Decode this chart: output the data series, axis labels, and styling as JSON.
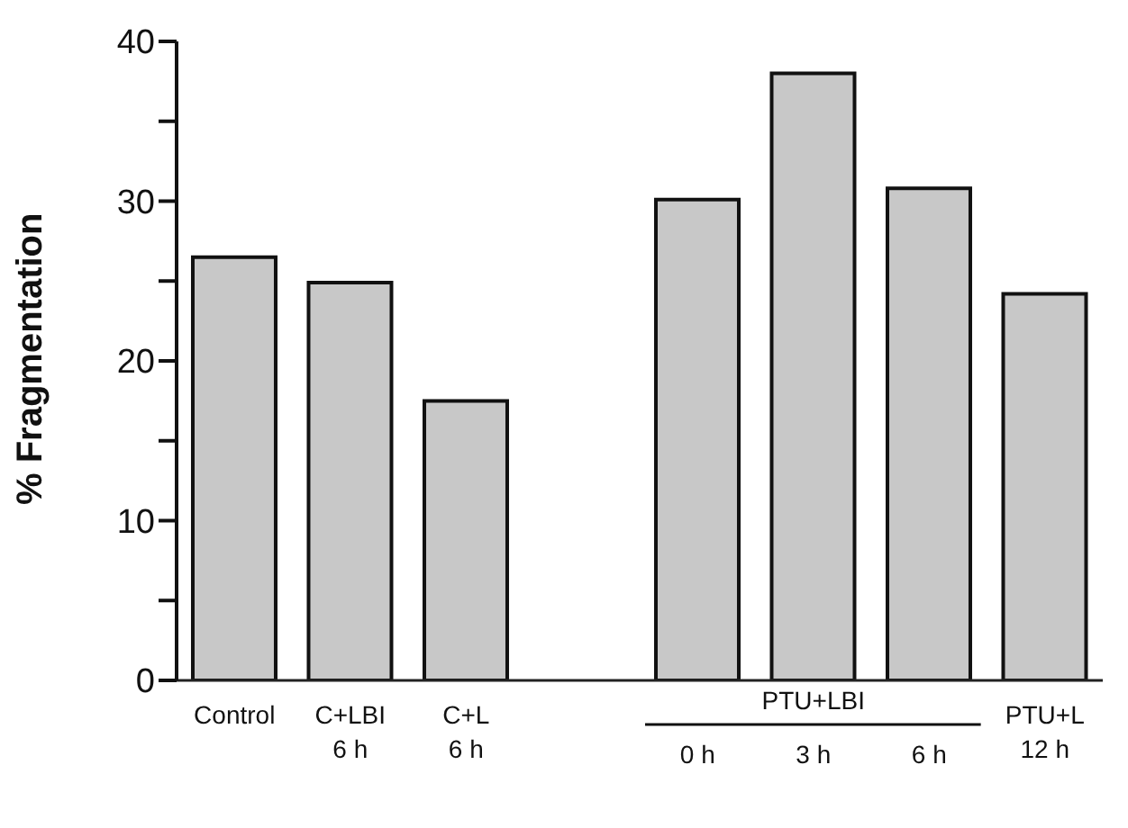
{
  "chart_data": {
    "type": "bar",
    "ylabel": "% Fragmentation",
    "categories": [
      "Control",
      "C+LBI\n6 h",
      "C+L\n6 h",
      null,
      "0 h",
      "3 h",
      "6 h",
      "PTU+L\n12 h"
    ],
    "values": [
      26.5,
      24.9,
      17.5,
      null,
      30.1,
      38.0,
      30.8,
      24.2
    ],
    "color": "#c8c8c8",
    "ylim": [
      0,
      40
    ],
    "yticks": [
      0,
      {
        "value": 5,
        "label": null
      },
      10,
      {
        "value": 15,
        "label": null
      },
      20,
      {
        "value": 25,
        "label": null
      },
      30,
      {
        "value": 35,
        "label": null
      },
      40
    ],
    "annotations": [
      "PTU+LBI"
    ],
    "grid": false,
    "legend": false
  }
}
